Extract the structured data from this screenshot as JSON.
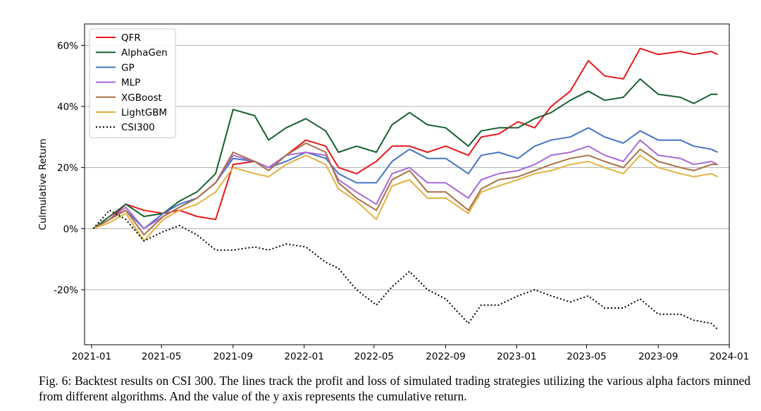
{
  "caption": "Fig. 6: Backtest results on CSI 300. The lines track the profit and loss of simulated trading strategies utilizing the various alpha factors minned from different algorithms. And the value of the y axis represents the cumulative return.",
  "chart_data": {
    "type": "line",
    "title": "",
    "xlabel": "",
    "ylabel": "Culmulative Return",
    "xlim": [
      "2020-12-20",
      "2024-01-01"
    ],
    "ylim": [
      -0.38,
      0.67
    ],
    "grid": "horizontal",
    "legend_placement": "top-left",
    "x_ticks": [
      "2021-01",
      "2021-05",
      "2021-09",
      "2022-01",
      "2022-05",
      "2022-09",
      "2023-01",
      "2023-05",
      "2023-09",
      "2024-01"
    ],
    "y_ticks": [
      {
        "value": 0.6,
        "label": "60%"
      },
      {
        "value": 0.4,
        "label": "40%"
      },
      {
        "value": 0.2,
        "label": "20%"
      },
      {
        "value": 0.0,
        "label": "0%"
      },
      {
        "value": -0.2,
        "label": "-20%"
      }
    ],
    "x": [
      "2021-01-04",
      "2021-02-01",
      "2021-03-01",
      "2021-04-01",
      "2021-05-04",
      "2021-06-01",
      "2021-07-01",
      "2021-08-02",
      "2021-09-01",
      "2021-10-08",
      "2021-11-01",
      "2021-12-01",
      "2022-01-04",
      "2022-02-07",
      "2022-03-01",
      "2022-04-01",
      "2022-05-05",
      "2022-06-01",
      "2022-07-01",
      "2022-08-01",
      "2022-09-01",
      "2022-10-10",
      "2022-11-01",
      "2022-12-01",
      "2023-01-03",
      "2023-02-01",
      "2023-03-01",
      "2023-04-03",
      "2023-05-04",
      "2023-06-01",
      "2023-07-03",
      "2023-08-01",
      "2023-09-01",
      "2023-10-09",
      "2023-11-01",
      "2023-12-01",
      "2023-12-12"
    ],
    "series": [
      {
        "name": "QFR",
        "color": "#e8191b",
        "dash": "",
        "values": [
          0.0,
          0.03,
          0.08,
          0.06,
          0.05,
          0.06,
          0.04,
          0.03,
          0.21,
          0.22,
          0.2,
          0.24,
          0.29,
          0.27,
          0.2,
          0.18,
          0.22,
          0.27,
          0.27,
          0.25,
          0.27,
          0.24,
          0.3,
          0.31,
          0.35,
          0.33,
          0.4,
          0.45,
          0.55,
          0.5,
          0.49,
          0.59,
          0.57,
          0.58,
          0.57,
          0.58,
          0.57
        ]
      },
      {
        "name": "AlphaGen",
        "color": "#17602f",
        "dash": "",
        "values": [
          0.0,
          0.04,
          0.08,
          0.04,
          0.05,
          0.09,
          0.12,
          0.18,
          0.39,
          0.37,
          0.29,
          0.33,
          0.36,
          0.32,
          0.25,
          0.27,
          0.25,
          0.34,
          0.38,
          0.34,
          0.33,
          0.27,
          0.32,
          0.33,
          0.33,
          0.36,
          0.38,
          0.42,
          0.45,
          0.42,
          0.43,
          0.49,
          0.44,
          0.43,
          0.41,
          0.44,
          0.44
        ]
      },
      {
        "name": "GP",
        "color": "#4575c4",
        "dash": "",
        "values": [
          0.0,
          0.03,
          0.06,
          0.0,
          0.05,
          0.08,
          0.1,
          0.15,
          0.23,
          0.22,
          0.2,
          0.22,
          0.25,
          0.23,
          0.18,
          0.15,
          0.15,
          0.22,
          0.26,
          0.23,
          0.23,
          0.18,
          0.24,
          0.25,
          0.23,
          0.27,
          0.29,
          0.3,
          0.33,
          0.3,
          0.28,
          0.32,
          0.29,
          0.29,
          0.27,
          0.26,
          0.25
        ]
      },
      {
        "name": "MLP",
        "color": "#a86bd6",
        "dash": "",
        "values": [
          0.0,
          0.03,
          0.07,
          0.0,
          0.04,
          0.07,
          0.1,
          0.15,
          0.24,
          0.22,
          0.2,
          0.24,
          0.25,
          0.24,
          0.16,
          0.12,
          0.08,
          0.18,
          0.2,
          0.15,
          0.15,
          0.1,
          0.16,
          0.18,
          0.19,
          0.21,
          0.24,
          0.25,
          0.27,
          0.24,
          0.22,
          0.29,
          0.24,
          0.23,
          0.21,
          0.22,
          0.21
        ]
      },
      {
        "name": "XGBoost",
        "color": "#aa7048",
        "dash": "",
        "values": [
          0.0,
          0.03,
          0.06,
          -0.02,
          0.04,
          0.07,
          0.1,
          0.15,
          0.25,
          0.22,
          0.19,
          0.24,
          0.28,
          0.25,
          0.15,
          0.1,
          0.06,
          0.16,
          0.19,
          0.12,
          0.12,
          0.06,
          0.13,
          0.16,
          0.17,
          0.19,
          0.21,
          0.23,
          0.24,
          0.22,
          0.2,
          0.26,
          0.22,
          0.2,
          0.19,
          0.21,
          0.21
        ]
      },
      {
        "name": "LightGBM",
        "color": "#e3b13f",
        "dash": "",
        "values": [
          0.0,
          0.02,
          0.05,
          -0.04,
          0.03,
          0.06,
          0.08,
          0.12,
          0.2,
          0.18,
          0.17,
          0.21,
          0.24,
          0.21,
          0.13,
          0.09,
          0.03,
          0.14,
          0.16,
          0.1,
          0.1,
          0.05,
          0.12,
          0.14,
          0.16,
          0.18,
          0.19,
          0.21,
          0.22,
          0.2,
          0.18,
          0.24,
          0.2,
          0.18,
          0.17,
          0.18,
          0.17
        ]
      },
      {
        "name": "CSI300",
        "color": "#000000",
        "dash": "2,3",
        "values": [
          0.0,
          0.06,
          0.03,
          -0.04,
          -0.01,
          0.01,
          -0.02,
          -0.07,
          -0.07,
          -0.06,
          -0.07,
          -0.05,
          -0.06,
          -0.11,
          -0.13,
          -0.2,
          -0.25,
          -0.19,
          -0.14,
          -0.2,
          -0.23,
          -0.31,
          -0.25,
          -0.25,
          -0.22,
          -0.2,
          -0.22,
          -0.24,
          -0.22,
          -0.26,
          -0.26,
          -0.23,
          -0.28,
          -0.28,
          -0.3,
          -0.31,
          -0.33
        ]
      }
    ]
  }
}
